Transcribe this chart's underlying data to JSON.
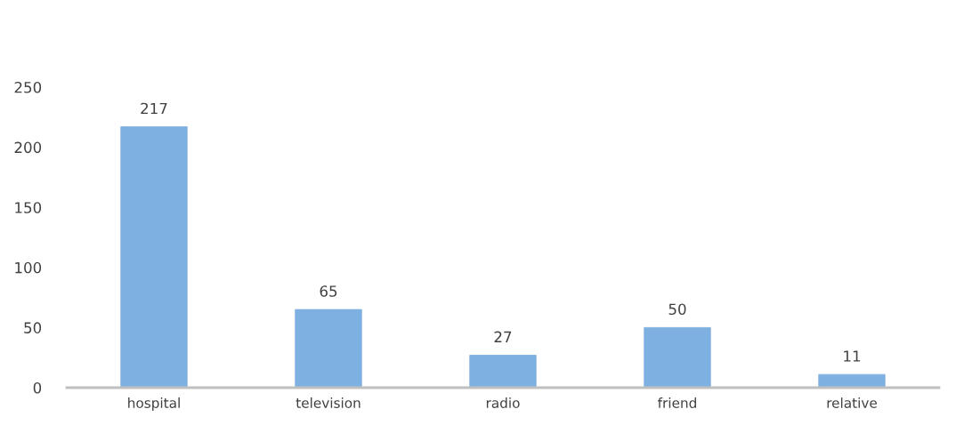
{
  "chart_data": {
    "type": "bar",
    "categories": [
      "hospital",
      "television",
      "radio",
      "friend",
      "relative"
    ],
    "values": [
      217,
      65,
      27,
      50,
      11
    ],
    "color": "#7eb0e2",
    "ylim": [
      0,
      250
    ],
    "yticks": [
      0,
      50,
      100,
      150,
      200,
      250
    ],
    "grid": false,
    "data_labels": true
  }
}
